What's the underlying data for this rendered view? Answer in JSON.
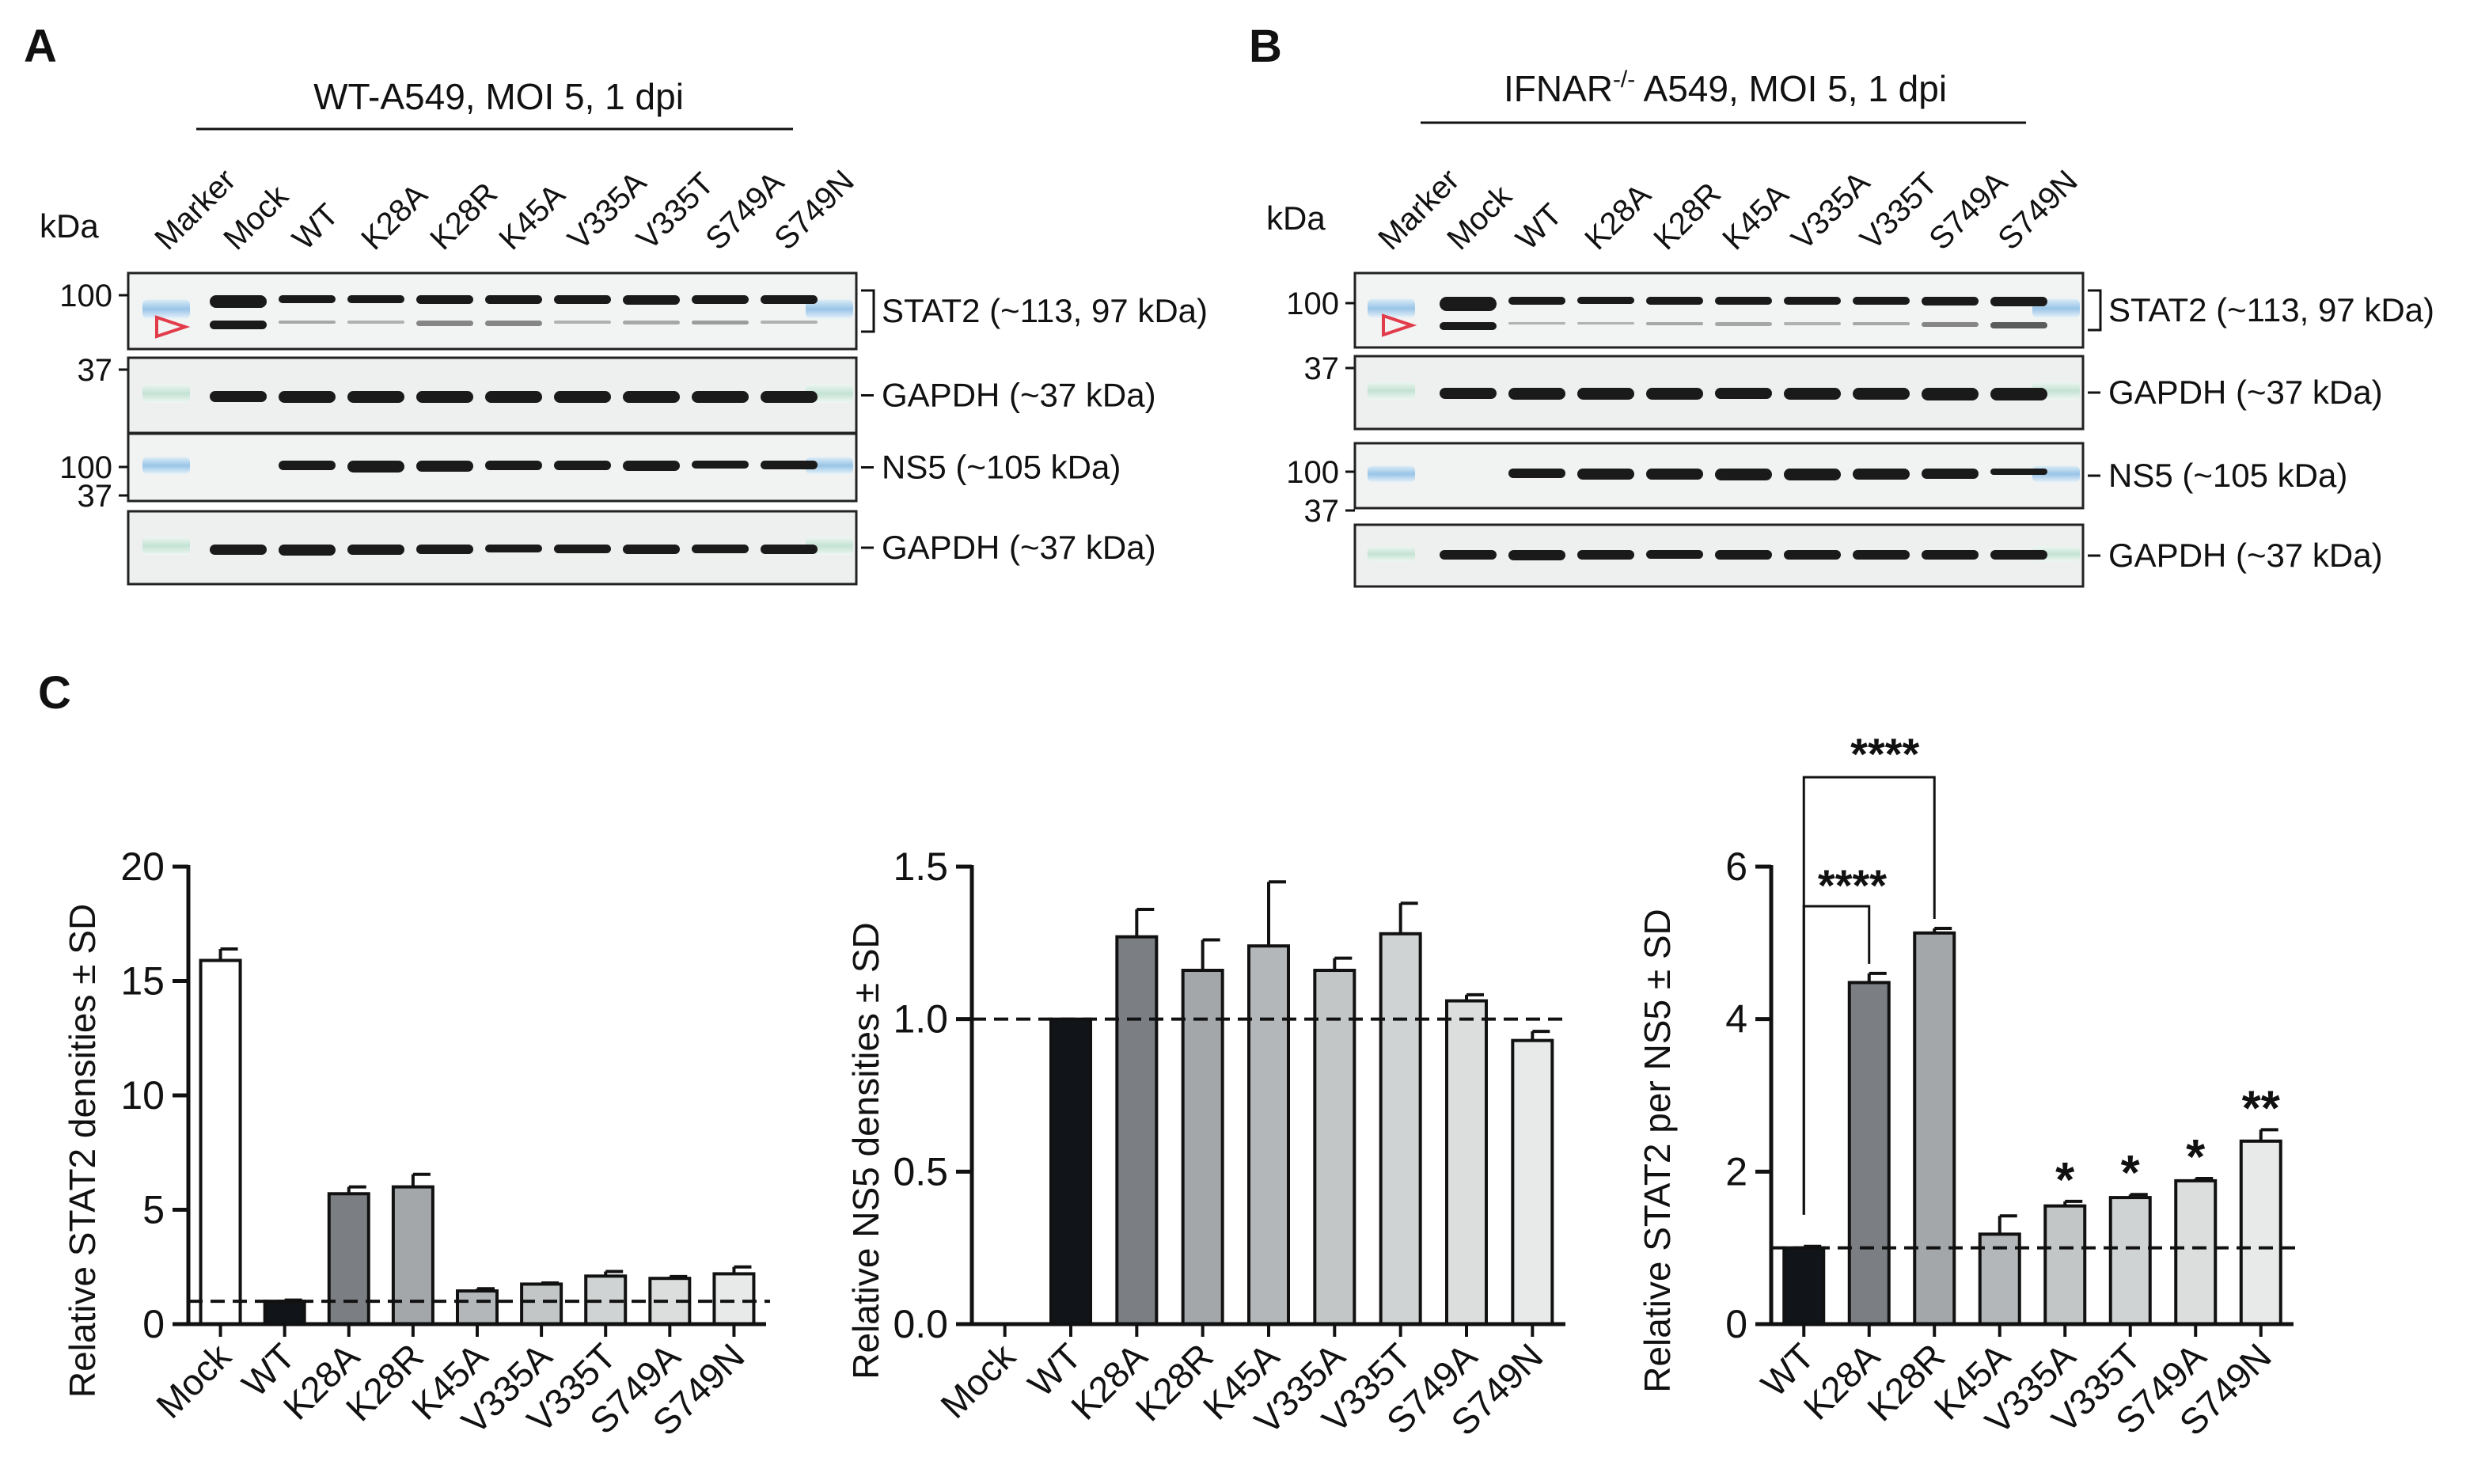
{
  "panels": {
    "A": {
      "letter": "A",
      "condition": "WT-A549, MOI 5, 1 dpi",
      "kda_label": "kDa",
      "lanes": [
        "Marker",
        "Mock",
        "WT",
        "K28A",
        "K28R",
        "K45A",
        "V335A",
        "V335T",
        "S749A",
        "S749N"
      ],
      "blots": [
        {
          "marker": "100",
          "label": "STAT2 (~113, 97 kDa)",
          "marker2": "37"
        },
        {
          "marker": "",
          "label": "GAPDH (~37 kDa)"
        },
        {
          "marker": "100",
          "label": "NS5 (~105 kDa)"
        },
        {
          "marker": "37",
          "label": "GAPDH (~37 kDa)"
        }
      ]
    },
    "B": {
      "letter": "B",
      "condition_prefix": "IFNAR",
      "condition_sup": "-/-",
      "condition_suffix": " A549, MOI 5, 1 dpi",
      "kda_label": "kDa",
      "lanes": [
        "Marker",
        "Mock",
        "WT",
        "K28A",
        "K28R",
        "K45A",
        "V335A",
        "V335T",
        "S749A",
        "S749N"
      ],
      "blots": [
        {
          "marker": "100",
          "label": "STAT2 (~113, 97 kDa)",
          "marker2": "37"
        },
        {
          "marker": "",
          "label": "GAPDH (~37 kDa)"
        },
        {
          "marker": "100",
          "label": "NS5 (~105 kDa)"
        },
        {
          "marker": "37",
          "label": "GAPDH (~37 kDa)"
        }
      ]
    },
    "C": {
      "letter": "C"
    }
  },
  "chart_data": [
    {
      "type": "bar",
      "ylabel": "Relative STAT2 densities ± SD",
      "categories": [
        "Mock",
        "WT",
        "K28A",
        "K28R",
        "K45A",
        "V335A",
        "V335T",
        "S749A",
        "S749N"
      ],
      "values": [
        15.9,
        1.0,
        5.7,
        6.0,
        1.45,
        1.75,
        2.1,
        2.0,
        2.2
      ],
      "errors": [
        0.5,
        0.05,
        0.3,
        0.55,
        0.1,
        0.05,
        0.2,
        0.08,
        0.3
      ],
      "fills": [
        "#ffffff",
        "#111418",
        "#7b7e82",
        "#a4a7aa",
        "#b4b7b9",
        "#c3c6c7",
        "#d0d3d3",
        "#dcdedd",
        "#e8e9e9"
      ],
      "ylim": [
        0,
        20
      ],
      "yticks": [
        "0",
        "5",
        "10",
        "15",
        "20"
      ],
      "reference_line": 1.0
    },
    {
      "type": "bar",
      "ylabel": "Relative NS5 densities ± SD",
      "categories": [
        "Mock",
        "WT",
        "K28A",
        "K28R",
        "K45A",
        "V335A",
        "V335T",
        "S749A",
        "S749N"
      ],
      "values": [
        0,
        1.0,
        1.27,
        1.16,
        1.24,
        1.16,
        1.28,
        1.06,
        0.93
      ],
      "errors": [
        0,
        0,
        0.09,
        0.1,
        0.21,
        0.04,
        0.1,
        0.02,
        0.03
      ],
      "fills": [
        "#ffffff",
        "#111418",
        "#7b7e82",
        "#a4a7aa",
        "#b4b7b9",
        "#c3c6c7",
        "#d0d3d3",
        "#dcdedd",
        "#e8e9e9"
      ],
      "ylim": [
        0,
        1.5
      ],
      "yticks": [
        "0.0",
        "0.5",
        "1.0",
        "1.5"
      ],
      "reference_line": 1.0
    },
    {
      "type": "bar",
      "ylabel": "Relative STAT2 per NS5 ± SD",
      "categories": [
        "WT",
        "K28A",
        "K28R",
        "K45A",
        "V335A",
        "V335T",
        "S749A",
        "S749N"
      ],
      "values": [
        1.0,
        4.48,
        5.13,
        1.18,
        1.55,
        1.66,
        1.88,
        2.4
      ],
      "errors": [
        0.02,
        0.12,
        0.06,
        0.24,
        0.06,
        0.04,
        0.03,
        0.15
      ],
      "fills": [
        "#111418",
        "#7b7e82",
        "#a4a7aa",
        "#b4b7b9",
        "#c3c6c7",
        "#d0d3d3",
        "#dcdedd",
        "#e8e9e9"
      ],
      "ylim": [
        0,
        6
      ],
      "yticks": [
        "0",
        "2",
        "4",
        "6"
      ],
      "reference_line": 1.0,
      "significance": [
        "",
        "",
        "",
        "",
        "*",
        "*",
        "*",
        "**"
      ],
      "brackets": [
        {
          "from": "WT",
          "to": "K28A",
          "label": "****"
        },
        {
          "from": "WT",
          "to": "K28R",
          "label": "****"
        }
      ]
    }
  ]
}
